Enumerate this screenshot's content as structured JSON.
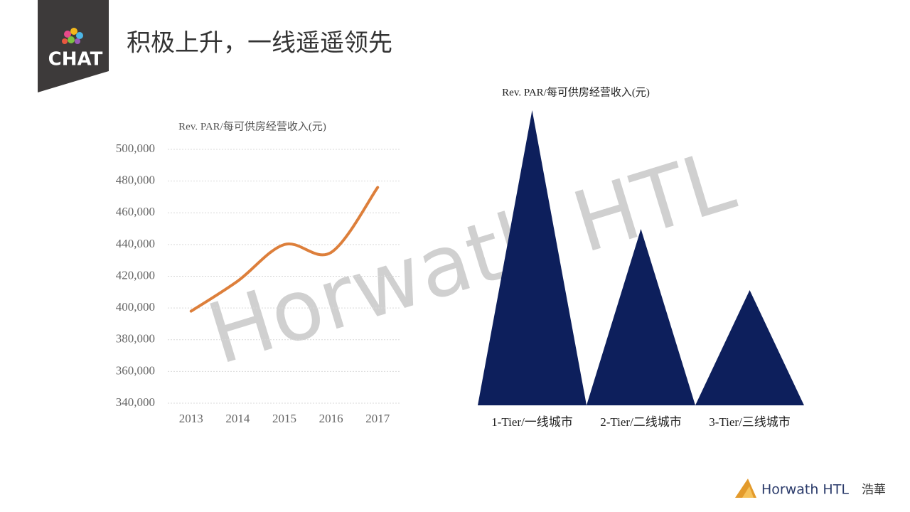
{
  "header": {
    "logo": "CHAT",
    "title": "积极上升，一线遥遥领先"
  },
  "watermark": "Horwath HTL",
  "footer": {
    "brand": "Horwath HTL",
    "brand_cn": "浩華"
  },
  "chart_data": [
    {
      "type": "line",
      "title": "Rev. PAR/每可供房经营收入(元)",
      "categories": [
        "2013",
        "2014",
        "2015",
        "2016",
        "2017"
      ],
      "series": [
        {
          "color": "#dd7f3b",
          "values": [
            398000,
            417000,
            440000,
            435000,
            476000
          ]
        }
      ],
      "ylim": [
        340000,
        500000
      ],
      "yticks": [
        {
          "value": 340000,
          "label": "340,000"
        },
        {
          "value": 360000,
          "label": "360,000"
        },
        {
          "value": 380000,
          "label": "380,000"
        },
        {
          "value": 400000,
          "label": "400,000"
        },
        {
          "value": 420000,
          "label": "420,000"
        },
        {
          "value": 440000,
          "label": "440,000"
        },
        {
          "value": 460000,
          "label": "460,000"
        },
        {
          "value": 480000,
          "label": "480,000"
        },
        {
          "value": 500000,
          "label": "500,000"
        }
      ],
      "grid": true
    },
    {
      "type": "peak",
      "title": "Rev. PAR/每可供房经营收入(元)",
      "categories": [
        "1-Tier/一线城市",
        "2-Tier/二线城市",
        "3-Tier/三线城市"
      ],
      "values": [
        415,
        248,
        162
      ],
      "color": "#0d1f5c",
      "ylim": [
        0,
        430
      ]
    }
  ]
}
